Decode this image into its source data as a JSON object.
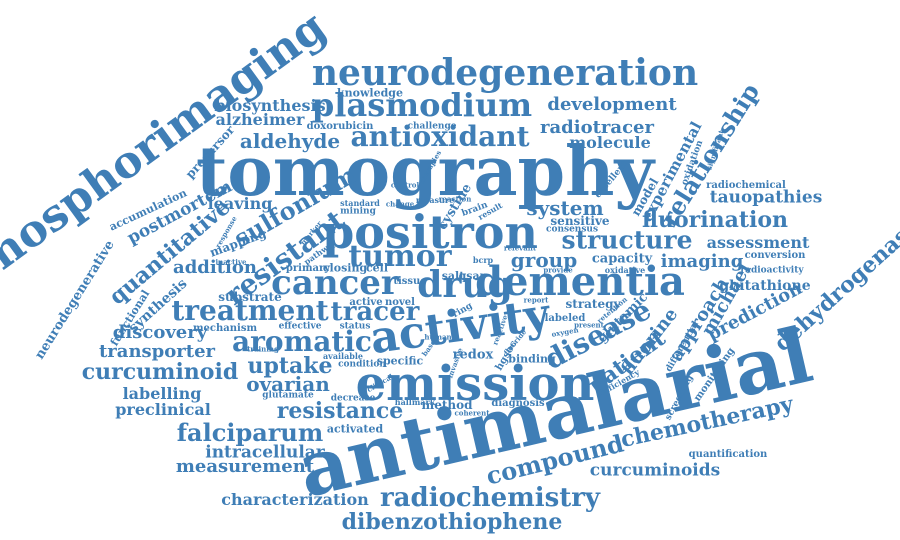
{
  "cloud": {
    "color": "#3f7eb6",
    "words": [
      {
        "text": "antimalarial"
      },
      {
        "text": "tomography"
      },
      {
        "text": "phosphorimaging"
      },
      {
        "text": "neurodegeneration"
      },
      {
        "text": "positron"
      },
      {
        "text": "emission"
      },
      {
        "text": "activity"
      },
      {
        "text": "dementia"
      },
      {
        "text": "plasmodium"
      },
      {
        "text": "antioxidant"
      },
      {
        "text": "tumor"
      },
      {
        "text": "cancer"
      },
      {
        "text": "drug"
      },
      {
        "text": "structure"
      },
      {
        "text": "resistant"
      },
      {
        "text": "sulfonium"
      },
      {
        "text": "treatment"
      },
      {
        "text": "tracer"
      },
      {
        "text": "aromatic"
      },
      {
        "text": "disease"
      },
      {
        "text": "quantitative"
      },
      {
        "text": "radiochemistry"
      },
      {
        "text": "dibenzothiophene"
      },
      {
        "text": "compound"
      },
      {
        "text": "chemotherapy"
      },
      {
        "text": "dehydrogenase"
      },
      {
        "text": "relationship"
      },
      {
        "text": "fluorination"
      },
      {
        "text": "resistance"
      },
      {
        "text": "falciparum"
      },
      {
        "text": "curcuminoid"
      },
      {
        "text": "curcuminoids"
      },
      {
        "text": "development"
      },
      {
        "text": "radiotracer"
      },
      {
        "text": "transporter"
      },
      {
        "text": "uptake"
      },
      {
        "text": "ovarian"
      },
      {
        "text": "measurement"
      },
      {
        "text": "characterization"
      },
      {
        "text": "intracellular"
      },
      {
        "text": "preclinical"
      },
      {
        "text": "labelling"
      },
      {
        "text": "discovery"
      },
      {
        "text": "addition"
      },
      {
        "text": "postmortem"
      },
      {
        "text": "leaving"
      },
      {
        "text": "aldehyde"
      },
      {
        "text": "alzheimer"
      },
      {
        "text": "biosynthesis"
      },
      {
        "text": "molecule"
      },
      {
        "text": "system"
      },
      {
        "text": "group"
      },
      {
        "text": "imaging"
      },
      {
        "text": "assessment"
      },
      {
        "text": "tauopathies"
      },
      {
        "text": "patient"
      },
      {
        "text": "fluorine"
      },
      {
        "text": "approach"
      },
      {
        "text": "michael"
      },
      {
        "text": "prediction"
      },
      {
        "text": "glutathione"
      },
      {
        "text": "experimental"
      },
      {
        "text": "model"
      },
      {
        "text": "strategy"
      },
      {
        "text": "redox"
      },
      {
        "text": "neurodegenerative"
      },
      {
        "text": "functional"
      },
      {
        "text": "synthesis"
      },
      {
        "text": "precursor"
      },
      {
        "text": "accumulation"
      },
      {
        "text": "knowledge"
      },
      {
        "text": "doxorubicin"
      },
      {
        "text": "challenge"
      },
      {
        "text": "radiochemical"
      },
      {
        "text": "capacity"
      },
      {
        "text": "sensitive"
      },
      {
        "text": "cystine"
      },
      {
        "text": "substrate"
      },
      {
        "text": "mapping"
      },
      {
        "text": "mechanism"
      },
      {
        "text": "effective"
      },
      {
        "text": "status"
      },
      {
        "text": "labeled"
      },
      {
        "text": "glutamic"
      },
      {
        "text": "method"
      },
      {
        "text": "diagnosis"
      },
      {
        "text": "activated"
      },
      {
        "text": "decrease"
      },
      {
        "text": "hallmark"
      },
      {
        "text": "coherent"
      },
      {
        "text": "glutamate"
      },
      {
        "text": "quantification"
      },
      {
        "text": "efficiency"
      },
      {
        "text": "screening"
      },
      {
        "text": "monitoring"
      },
      {
        "text": "differential"
      },
      {
        "text": "oxidation"
      },
      {
        "text": "significant"
      },
      {
        "text": "excellent"
      },
      {
        "text": "conversion"
      },
      {
        "text": "radioactivity"
      },
      {
        "text": "oxidative"
      },
      {
        "text": "provide"
      },
      {
        "text": "retention"
      },
      {
        "text": "binding"
      },
      {
        "text": "specific"
      },
      {
        "text": "condition"
      },
      {
        "text": "available"
      },
      {
        "text": "invasive"
      },
      {
        "text": "closing"
      },
      {
        "text": "cell"
      },
      {
        "text": "primary"
      },
      {
        "text": "pathway"
      },
      {
        "text": "tissue"
      },
      {
        "text": "salt"
      },
      {
        "text": "qsar"
      },
      {
        "text": "bcrp"
      },
      {
        "text": "active"
      },
      {
        "text": "novel"
      },
      {
        "text": "ring"
      },
      {
        "text": "report"
      },
      {
        "text": "mining"
      },
      {
        "text": "standard"
      },
      {
        "text": "change"
      },
      {
        "text": "measure"
      },
      {
        "text": "reaction"
      },
      {
        "text": "brain"
      },
      {
        "text": "result"
      },
      {
        "text": "consensus"
      },
      {
        "text": "therapies"
      },
      {
        "text": "control"
      },
      {
        "text": "response"
      },
      {
        "text": "training"
      },
      {
        "text": "inactive"
      },
      {
        "text": "marker"
      },
      {
        "text": "relevant"
      },
      {
        "text": "clinical"
      },
      {
        "text": "human"
      },
      {
        "text": "based"
      },
      {
        "text": "fluoride"
      },
      {
        "text": "hgsoc"
      },
      {
        "text": "oxygen"
      },
      {
        "text": "present"
      },
      {
        "text": "reactive"
      }
    ]
  }
}
